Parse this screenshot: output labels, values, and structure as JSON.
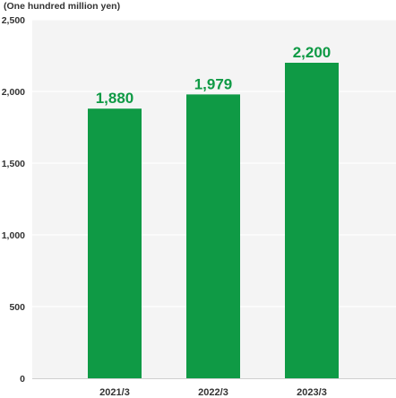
{
  "unit_label": "(One hundred million yen)",
  "chart_data": {
    "type": "bar",
    "categories": [
      "2021/3",
      "2022/3",
      "2023/3"
    ],
    "values": [
      1880,
      1979,
      2200
    ],
    "value_labels": [
      "1,880",
      "1,979",
      "2,200"
    ],
    "ylim": [
      0,
      2500
    ],
    "yticks": [
      0,
      500,
      1000,
      1500,
      2000,
      2500
    ],
    "ytick_labels": [
      "0",
      "500",
      "1,000",
      "1,500",
      "2,000",
      "2,500"
    ],
    "title": "",
    "xlabel": "",
    "ylabel": "(One hundred million yen)",
    "grid": true,
    "colors": {
      "bar": "#0f9a45",
      "data_label": "#0f9a45",
      "plot_background": "#f4f4f4",
      "grid": "#ffffff",
      "axis": "#cfcfcf"
    }
  }
}
